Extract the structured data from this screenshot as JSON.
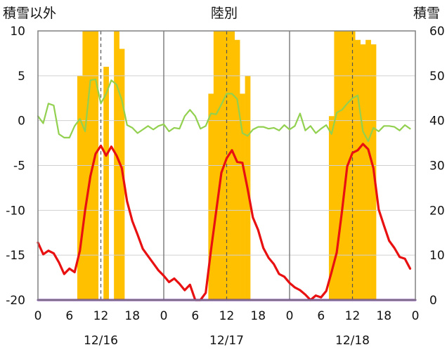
{
  "labels": {
    "left_axis": "積雪以外",
    "center": "陸別",
    "right_axis": "積雪"
  },
  "colors": {
    "snow_bars": "#FFC000",
    "temperature": "#E81010",
    "secondary_line": "#92D050",
    "baseline": "#7030A0",
    "frame": "#808080"
  },
  "chart_data": {
    "type": "bar+line",
    "title": "",
    "left_axis": {
      "ylim": [
        -20,
        10
      ],
      "ticks": [
        -20,
        -15,
        -10,
        -5,
        0,
        5,
        10
      ]
    },
    "right_axis": {
      "ylim": [
        0,
        60
      ],
      "ticks": [
        0,
        10,
        20,
        30,
        40,
        50,
        60
      ]
    },
    "x_axis": {
      "hour_ticks": [
        "0",
        "6",
        "12",
        "18",
        "0",
        "6",
        "12",
        "18",
        "0",
        "6",
        "12",
        "18",
        "0"
      ],
      "day_labels": [
        "12/16",
        "12/17",
        "12/18"
      ],
      "range_hours": [
        0,
        72
      ],
      "day_boundaries": [
        24,
        48
      ],
      "noon_markers": [
        12,
        36,
        60
      ]
    },
    "series": [
      {
        "kind": "bar",
        "axis": "right",
        "values": [
          [
            8,
            50
          ],
          [
            9,
            60
          ],
          [
            10,
            60
          ],
          [
            11,
            60
          ],
          [
            13,
            52
          ],
          [
            15,
            60
          ],
          [
            16,
            56
          ],
          [
            33,
            46
          ],
          [
            34,
            60
          ],
          [
            35,
            60
          ],
          [
            36,
            60
          ],
          [
            37,
            60
          ],
          [
            38,
            58
          ],
          [
            39,
            46
          ],
          [
            40,
            50
          ],
          [
            56,
            41
          ],
          [
            57,
            60
          ],
          [
            58,
            60
          ],
          [
            59,
            60
          ],
          [
            60,
            60
          ],
          [
            61,
            58
          ],
          [
            62,
            57
          ],
          [
            63,
            58
          ],
          [
            64,
            57
          ]
        ]
      },
      {
        "kind": "line",
        "axis": "left",
        "values": [
          [
            0,
            0.5
          ],
          [
            1,
            -0.3
          ],
          [
            2,
            1.9
          ],
          [
            3,
            1.7
          ],
          [
            4,
            -1.5
          ],
          [
            5,
            -1.9
          ],
          [
            6,
            -1.9
          ],
          [
            7,
            -0.6
          ],
          [
            8,
            0.2
          ],
          [
            9,
            -1.2
          ],
          [
            10,
            4.5
          ],
          [
            11,
            4.6
          ],
          [
            12,
            1.9
          ],
          [
            13,
            3.0
          ],
          [
            14,
            4.5
          ],
          [
            15,
            4.0
          ],
          [
            16,
            2.3
          ],
          [
            17,
            -0.5
          ],
          [
            18,
            -0.8
          ],
          [
            19,
            -1.4
          ],
          [
            20,
            -1.0
          ],
          [
            21,
            -0.6
          ],
          [
            22,
            -1.0
          ],
          [
            23,
            -0.6
          ],
          [
            24,
            -0.4
          ],
          [
            25,
            -1.2
          ],
          [
            26,
            -0.8
          ],
          [
            27,
            -0.9
          ],
          [
            28,
            0.5
          ],
          [
            29,
            1.2
          ],
          [
            30,
            0.5
          ],
          [
            31,
            -0.9
          ],
          [
            32,
            -0.6
          ],
          [
            33,
            0.8
          ],
          [
            34,
            0.7
          ],
          [
            35,
            1.8
          ],
          [
            36,
            3.0
          ],
          [
            37,
            3.0
          ],
          [
            38,
            2.4
          ],
          [
            39,
            -1.4
          ],
          [
            40,
            -1.7
          ],
          [
            41,
            -1.0
          ],
          [
            42,
            -0.7
          ],
          [
            43,
            -0.7
          ],
          [
            44,
            -0.9
          ],
          [
            45,
            -0.8
          ],
          [
            46,
            -1.1
          ],
          [
            47,
            -0.5
          ],
          [
            48,
            -1.0
          ],
          [
            49,
            -0.6
          ],
          [
            50,
            0.8
          ],
          [
            51,
            -1.1
          ],
          [
            52,
            -0.6
          ],
          [
            53,
            -1.4
          ],
          [
            54,
            -0.9
          ],
          [
            55,
            -0.5
          ],
          [
            56,
            -1.5
          ],
          [
            57,
            0.9
          ],
          [
            58,
            1.2
          ],
          [
            59,
            1.9
          ],
          [
            60,
            2.5
          ],
          [
            61,
            2.8
          ],
          [
            62,
            -1.2
          ],
          [
            63,
            -2.3
          ],
          [
            64,
            -0.8
          ],
          [
            65,
            -1.2
          ],
          [
            66,
            -0.6
          ],
          [
            67,
            -0.6
          ],
          [
            68,
            -0.7
          ],
          [
            69,
            -1.1
          ],
          [
            70,
            -0.5
          ],
          [
            71,
            -0.9
          ]
        ]
      },
      {
        "kind": "line",
        "axis": "left",
        "values": [
          [
            0,
            -13.6
          ],
          [
            1,
            -14.9
          ],
          [
            2,
            -14.5
          ],
          [
            3,
            -14.8
          ],
          [
            4,
            -15.8
          ],
          [
            5,
            -17.1
          ],
          [
            6,
            -16.5
          ],
          [
            7,
            -16.9
          ],
          [
            8,
            -14.5
          ],
          [
            9,
            -10.0
          ],
          [
            10,
            -6.2
          ],
          [
            11,
            -3.7
          ],
          [
            12,
            -2.8
          ],
          [
            13,
            -3.9
          ],
          [
            14,
            -2.9
          ],
          [
            15,
            -3.9
          ],
          [
            16,
            -5.3
          ],
          [
            17,
            -9.0
          ],
          [
            18,
            -11.2
          ],
          [
            19,
            -12.7
          ],
          [
            20,
            -14.3
          ],
          [
            21,
            -15.1
          ],
          [
            22,
            -15.9
          ],
          [
            23,
            -16.7
          ],
          [
            24,
            -17.3
          ],
          [
            25,
            -18.0
          ],
          [
            26,
            -17.6
          ],
          [
            27,
            -18.2
          ],
          [
            28,
            -18.9
          ],
          [
            29,
            -18.3
          ],
          [
            30,
            -20.0
          ],
          [
            31,
            -20.0
          ],
          [
            32,
            -19.2
          ],
          [
            33,
            -14.5
          ],
          [
            34,
            -10.1
          ],
          [
            35,
            -5.8
          ],
          [
            36,
            -4.2
          ],
          [
            37,
            -3.3
          ],
          [
            38,
            -4.6
          ],
          [
            39,
            -4.7
          ],
          [
            40,
            -7.6
          ],
          [
            41,
            -10.8
          ],
          [
            42,
            -12.2
          ],
          [
            43,
            -14.2
          ],
          [
            44,
            -15.3
          ],
          [
            45,
            -16.0
          ],
          [
            46,
            -17.1
          ],
          [
            47,
            -17.4
          ],
          [
            48,
            -18.1
          ],
          [
            49,
            -18.6
          ],
          [
            50,
            -18.9
          ],
          [
            51,
            -19.4
          ],
          [
            52,
            -20.0
          ],
          [
            53,
            -19.5
          ],
          [
            54,
            -19.7
          ],
          [
            55,
            -19.0
          ],
          [
            56,
            -16.9
          ],
          [
            57,
            -14.7
          ],
          [
            58,
            -10.1
          ],
          [
            59,
            -5.1
          ],
          [
            60,
            -3.6
          ],
          [
            61,
            -3.3
          ],
          [
            62,
            -2.6
          ],
          [
            63,
            -3.2
          ],
          [
            64,
            -5.3
          ],
          [
            65,
            -9.9
          ],
          [
            66,
            -11.7
          ],
          [
            67,
            -13.4
          ],
          [
            68,
            -14.2
          ],
          [
            69,
            -15.2
          ],
          [
            70,
            -15.4
          ],
          [
            71,
            -16.5
          ]
        ]
      },
      {
        "kind": "line",
        "axis": "left",
        "values": [
          [
            0,
            -20.0
          ],
          [
            72,
            -20.0
          ]
        ]
      }
    ]
  }
}
